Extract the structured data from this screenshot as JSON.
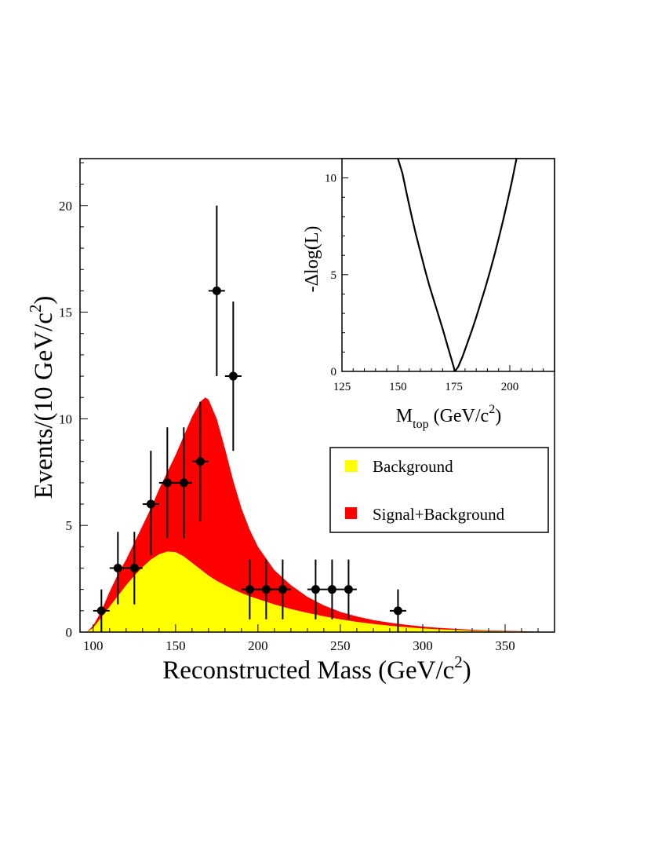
{
  "chart_data": [
    {
      "type": "area",
      "xlabel": "Reconstructed Mass (GeV/c",
      "xlabel_sup": "2",
      "xlabel_close": ")",
      "ylabel": "Events/(10 GeV/c",
      "ylabel_sup": "2",
      "ylabel_close": ")",
      "xlim": [
        92,
        380
      ],
      "ylim": [
        0,
        22.2
      ],
      "xticks": [
        100,
        150,
        200,
        250,
        300,
        350
      ],
      "yticks": [
        0,
        5,
        10,
        15,
        20
      ],
      "legend": {
        "placement": "center-right",
        "entries": [
          {
            "label": "Background",
            "color": "#ffff00"
          },
          {
            "label": "Signal+Background",
            "color": "#ff0000"
          }
        ]
      },
      "series": [
        {
          "name": "Signal+Background",
          "color": "#ff0000",
          "x": [
            96,
            100,
            105,
            110,
            115,
            120,
            125,
            130,
            135,
            140,
            145,
            150,
            155,
            160,
            165,
            168,
            170,
            175,
            180,
            185,
            190,
            195,
            200,
            210,
            220,
            230,
            240,
            250,
            260,
            270,
            280,
            290,
            300,
            310,
            320,
            330,
            340,
            350,
            360,
            370,
            375
          ],
          "y": [
            0.0,
            0.3,
            1.0,
            1.9,
            2.7,
            3.4,
            4.2,
            5.0,
            5.8,
            6.7,
            7.5,
            8.3,
            9.2,
            10.1,
            10.8,
            11.0,
            10.9,
            10.0,
            8.6,
            7.1,
            5.8,
            4.8,
            4.0,
            2.9,
            2.2,
            1.65,
            1.25,
            0.95,
            0.73,
            0.56,
            0.44,
            0.34,
            0.26,
            0.2,
            0.15,
            0.11,
            0.08,
            0.06,
            0.04,
            0.02,
            0.01
          ]
        },
        {
          "name": "Background",
          "color": "#ffff00",
          "x": [
            96,
            100,
            105,
            110,
            115,
            120,
            125,
            130,
            135,
            140,
            145,
            150,
            155,
            160,
            165,
            170,
            175,
            180,
            185,
            190,
            195,
            200,
            210,
            220,
            230,
            240,
            250,
            260,
            270,
            280,
            290,
            300,
            310,
            320,
            330,
            340,
            350,
            360,
            370,
            375
          ],
          "y": [
            0.0,
            0.2,
            0.7,
            1.2,
            1.7,
            2.2,
            2.65,
            3.05,
            3.4,
            3.65,
            3.78,
            3.75,
            3.55,
            3.25,
            2.95,
            2.65,
            2.4,
            2.2,
            2.0,
            1.83,
            1.68,
            1.55,
            1.3,
            1.08,
            0.9,
            0.74,
            0.6,
            0.48,
            0.38,
            0.3,
            0.23,
            0.17,
            0.13,
            0.1,
            0.07,
            0.05,
            0.04,
            0.03,
            0.02,
            0.01
          ]
        },
        {
          "name": "data",
          "type": "scatter",
          "color": "#000000",
          "points": [
            {
              "x": 105,
              "y": 1,
              "lo": 0.0,
              "hi": 2.0
            },
            {
              "x": 115,
              "y": 3,
              "lo": 1.3,
              "hi": 4.7
            },
            {
              "x": 125,
              "y": 3,
              "lo": 1.3,
              "hi": 4.7
            },
            {
              "x": 135,
              "y": 6,
              "lo": 3.6,
              "hi": 8.5
            },
            {
              "x": 145,
              "y": 7,
              "lo": 4.4,
              "hi": 9.6
            },
            {
              "x": 155,
              "y": 7,
              "lo": 4.4,
              "hi": 9.6
            },
            {
              "x": 165,
              "y": 8,
              "lo": 5.2,
              "hi": 10.8
            },
            {
              "x": 175,
              "y": 16,
              "lo": 12.0,
              "hi": 20.0
            },
            {
              "x": 185,
              "y": 12,
              "lo": 8.5,
              "hi": 15.5
            },
            {
              "x": 195,
              "y": 2,
              "lo": 0.6,
              "hi": 3.4
            },
            {
              "x": 205,
              "y": 2,
              "lo": 0.6,
              "hi": 3.4
            },
            {
              "x": 215,
              "y": 2,
              "lo": 0.6,
              "hi": 3.4
            },
            {
              "x": 235,
              "y": 2,
              "lo": 0.6,
              "hi": 3.4
            },
            {
              "x": 245,
              "y": 2,
              "lo": 0.6,
              "hi": 3.4
            },
            {
              "x": 255,
              "y": 2,
              "lo": 0.6,
              "hi": 3.4
            },
            {
              "x": 285,
              "y": 1,
              "lo": 0.0,
              "hi": 2.0
            }
          ]
        }
      ]
    },
    {
      "type": "line",
      "xlabel_main": "M",
      "xlabel_sub": "top",
      "xlabel_rest": " (GeV/c",
      "xlabel_sup": "2",
      "xlabel_close": ")",
      "ylabel": "-Δlog(L)",
      "xlim": [
        125,
        220
      ],
      "ylim": [
        0,
        11
      ],
      "xticks": [
        125,
        150,
        175,
        200
      ],
      "yticks": [
        0,
        5,
        10
      ],
      "minimum": 175.5,
      "series": [
        {
          "x": [
            150,
            152,
            154,
            156,
            158,
            160,
            162,
            164,
            166,
            168,
            170,
            172,
            174,
            175.5,
            177,
            179,
            181,
            183,
            185,
            187,
            189,
            191,
            193,
            195,
            197,
            199,
            201,
            203
          ],
          "y": [
            11.0,
            10.25,
            9.15,
            8.1,
            7.1,
            6.2,
            5.3,
            4.45,
            3.7,
            2.95,
            2.2,
            1.4,
            0.6,
            0.0,
            0.25,
            0.8,
            1.45,
            2.1,
            2.8,
            3.55,
            4.3,
            5.1,
            5.95,
            6.85,
            7.8,
            8.8,
            9.85,
            11.0
          ]
        }
      ]
    }
  ]
}
